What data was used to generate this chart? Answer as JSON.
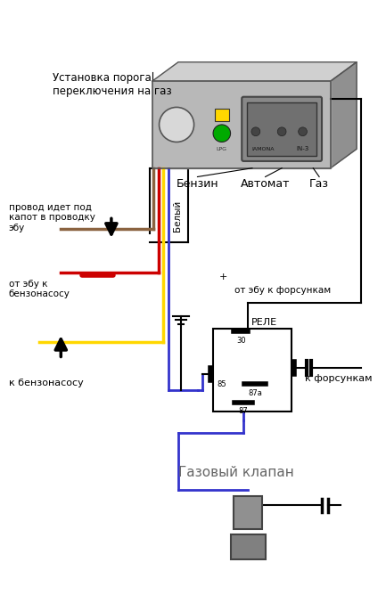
{
  "bg_color": "#ffffff",
  "fig_width": 4.33,
  "fig_height": 6.77,
  "dpi": 100,
  "text_label_top": "Установка порога\nпереключения на газ",
  "text_label_wire": "провод идет под\nкапот в проводку\nэбу",
  "text_label_ebu_pump": "от эбу к\nбензонасосу",
  "text_label_pump": "к бензонасосу",
  "text_label_ebu_inj": "от эбу к форсункам",
  "text_label_relay": "РЕЛЕ",
  "text_label_injectors": "к форсункам",
  "text_label_gas_valve": "Газовый клапан",
  "text_label_benzin": "Бензин",
  "text_label_avtomat": "Автомат",
  "text_label_gaz": "Газ",
  "text_label_bely": "Белый",
  "text_label_lpg": "LPG",
  "text_label_iamona": "IAMONA",
  "text_label_in3": "IN-3",
  "colors": {
    "box_fill": "#b8b8b8",
    "box_top": "#d0d0d0",
    "box_right": "#909090",
    "box_edge": "#555555",
    "wire_brown": "#8B6340",
    "wire_red": "#cc0000",
    "wire_yellow": "#FFD700",
    "wire_blue": "#3333cc",
    "wire_black": "#000000",
    "relay_fill": "#ffffff",
    "relay_edge": "#000000",
    "led_yellow": "#FFD700",
    "led_green": "#00aa00",
    "valve_fill": "#888888"
  }
}
